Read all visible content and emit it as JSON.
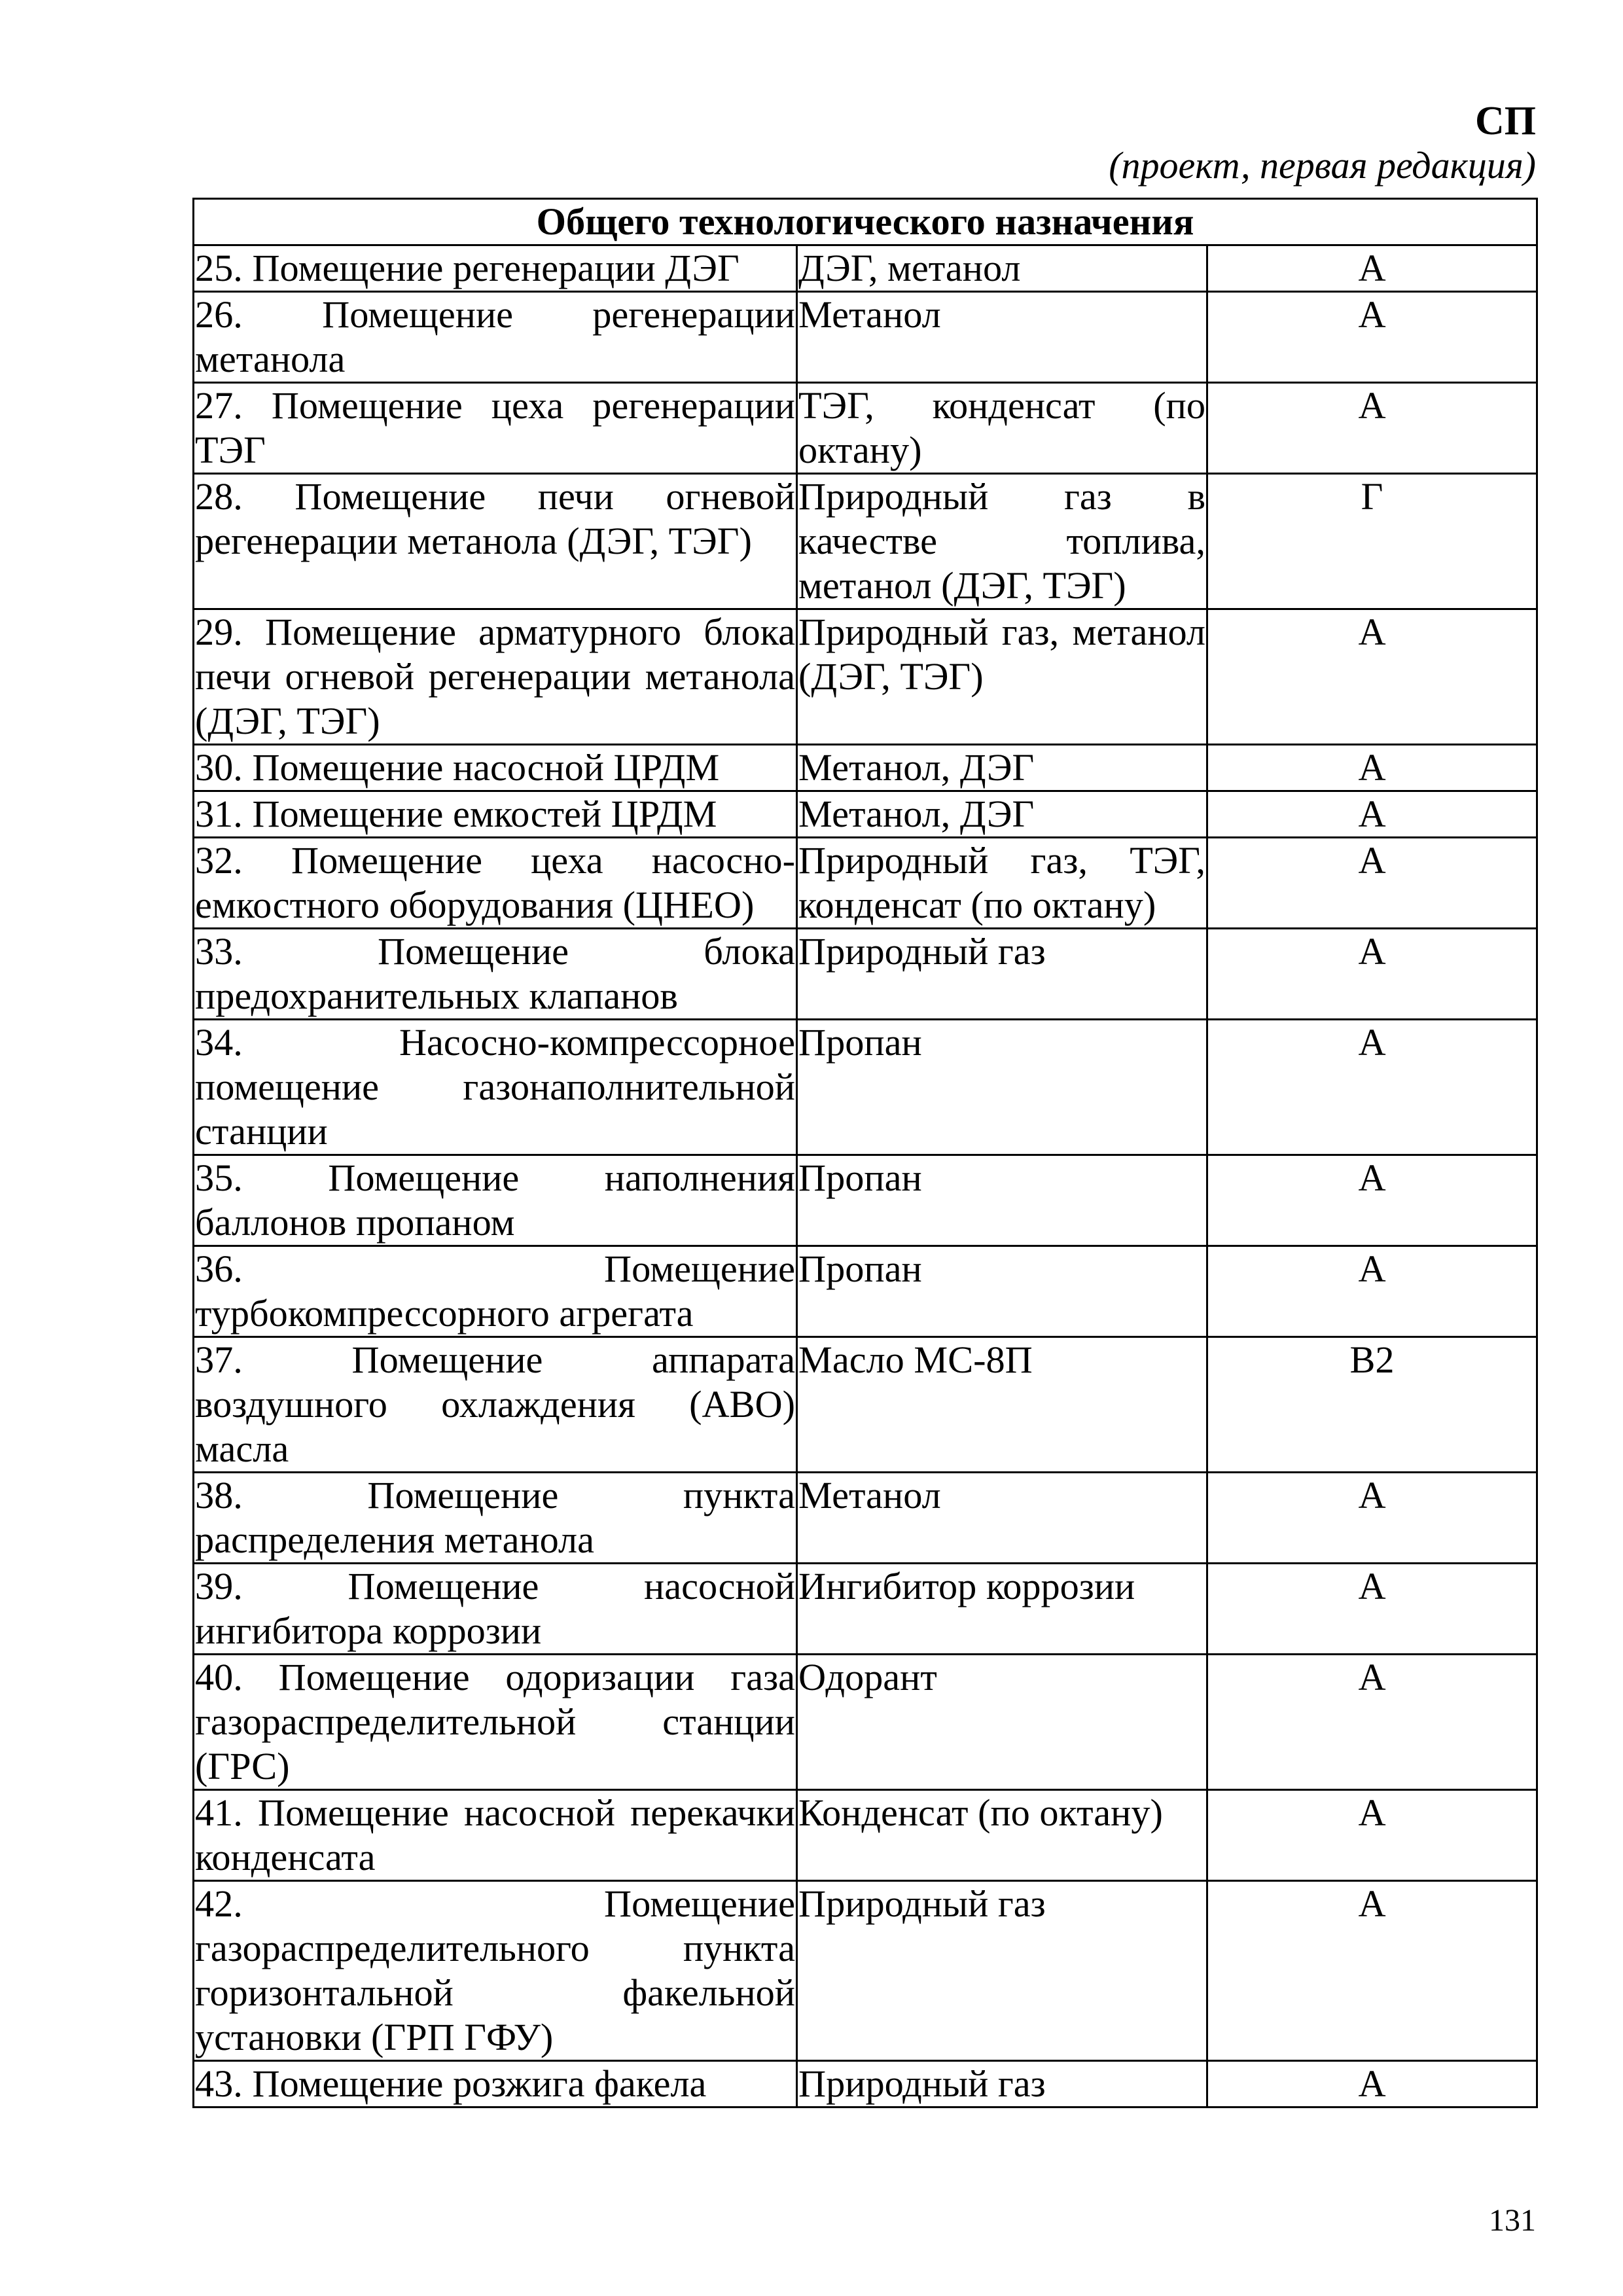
{
  "header": {
    "code": "СП",
    "status": "(проект, первая редакция)"
  },
  "table": {
    "section_title": "Общего технологического назначения",
    "rows": [
      {
        "room": "25. Помещение регенерации ДЭГ",
        "substance": "ДЭГ, метанол",
        "category": "А"
      },
      {
        "room": "26. Помещение регенерации метанола",
        "substance": "Метанол",
        "category": "А"
      },
      {
        "room": "27. Помещение цеха регенерации ТЭГ",
        "substance": "ТЭГ, конденсат (по октану)",
        "category": "А"
      },
      {
        "room": "28. Помещение печи огневой регенерации метанола (ДЭГ, ТЭГ)",
        "substance": "Природный газ в качестве топлива, метанол (ДЭГ, ТЭГ)",
        "category": "Г"
      },
      {
        "room": "29. Помещение арматурного блока печи огневой регенерации метанола (ДЭГ, ТЭГ)",
        "substance": "Природный газ, метанол (ДЭГ, ТЭГ)",
        "category": "А"
      },
      {
        "room": "30. Помещение насосной ЦРДМ",
        "substance": "Метанол, ДЭГ",
        "category": "А"
      },
      {
        "room": "31. Помещение емкостей ЦРДМ",
        "substance": "Метанол, ДЭГ",
        "category": "А"
      },
      {
        "room": "32. Помещение цеха насосно-емкостного оборудования (ЦНЕО)",
        "substance": "Природный газ, ТЭГ, конденсат (по октану)",
        "category": "А"
      },
      {
        "room": "33. Помещение блока предохранительных клапанов",
        "substance": "Природный газ",
        "category": "А"
      },
      {
        "room": "34. Насосно-компрессорное помещение газонаполнительной станции",
        "substance": "Пропан",
        "category": "А"
      },
      {
        "room": "35. Помещение наполнения баллонов пропаном",
        "substance": "Пропан",
        "category": "А"
      },
      {
        "room": "36. Помещение турбокомпрессорного агрегата",
        "substance": "Пропан",
        "category": "А"
      },
      {
        "room": "37. Помещение аппарата воздушного охлаждения (АВО) масла",
        "substance": "Масло МС-8П",
        "category": "В2"
      },
      {
        "room": "38. Помещение пункта распределения метанола",
        "substance": "Метанол",
        "category": "А"
      },
      {
        "room": "39. Помещение насосной ингибитора коррозии",
        "substance": "Ингибитор коррозии",
        "category": "А"
      },
      {
        "room": "40. Помещение одоризации газа газораспределительной станции (ГРС)",
        "substance": "Одорант",
        "category": "А"
      },
      {
        "room": "41. Помещение насосной перекачки конденсата",
        "substance": "Конденсат (по октану)",
        "category": "А"
      },
      {
        "room": "42. Помещение газораспределительного пункта горизонтальной факельной установки (ГРП ГФУ)",
        "substance": "Природный газ",
        "category": "А"
      },
      {
        "room": "43. Помещение розжига факела",
        "substance": "Природный газ",
        "category": "А"
      }
    ]
  },
  "footer": {
    "page_number": "131"
  }
}
